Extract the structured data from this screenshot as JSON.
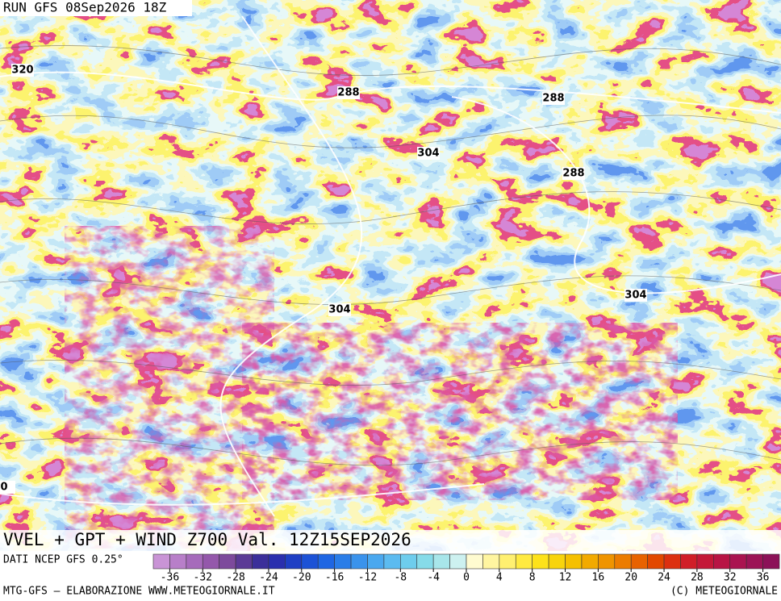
{
  "header": {
    "run": "RUN GFS 08Sep2026 18Z"
  },
  "map": {
    "contour_labels": [
      "320",
      "288",
      "288",
      "304",
      "288",
      "304",
      "304",
      "0"
    ]
  },
  "title": "VVEL + GPT + WIND Z700 Val. 12Z15SEP2026",
  "source": "DATI NCEP GFS 0.25°",
  "colorbar": {
    "ticks": [
      -36,
      -32,
      -28,
      -24,
      -20,
      -16,
      -12,
      -8,
      -4,
      0,
      4,
      8,
      12,
      16,
      20,
      24,
      28,
      32,
      36
    ],
    "colors": [
      "#c994d6",
      "#b87fc9",
      "#a66bbb",
      "#9458ab",
      "#7d4a9c",
      "#5b3a96",
      "#3b2f9a",
      "#2a2fae",
      "#1f3fc4",
      "#1c52d6",
      "#1f66e3",
      "#2a7de8",
      "#3a93ec",
      "#4aa8ef",
      "#5cbbf0",
      "#6ecded",
      "#86dbe9",
      "#a8e6ea",
      "#cdf1f0",
      "#fffbd0",
      "#fff5a0",
      "#fff070",
      "#ffea40",
      "#fde21a",
      "#f8d40c",
      "#f5c000",
      "#f2aa00",
      "#ef9400",
      "#ec7c00",
      "#e86200",
      "#e24800",
      "#dc3010",
      "#d01e28",
      "#c41838",
      "#b81444",
      "#aa1450",
      "#9c1456",
      "#8c1258"
    ]
  },
  "footer": {
    "left": "MTG-GFS — ELABORAZIONE WWW.METEOGIORNALE.IT",
    "right": "(C) METEOGIORNALE"
  }
}
